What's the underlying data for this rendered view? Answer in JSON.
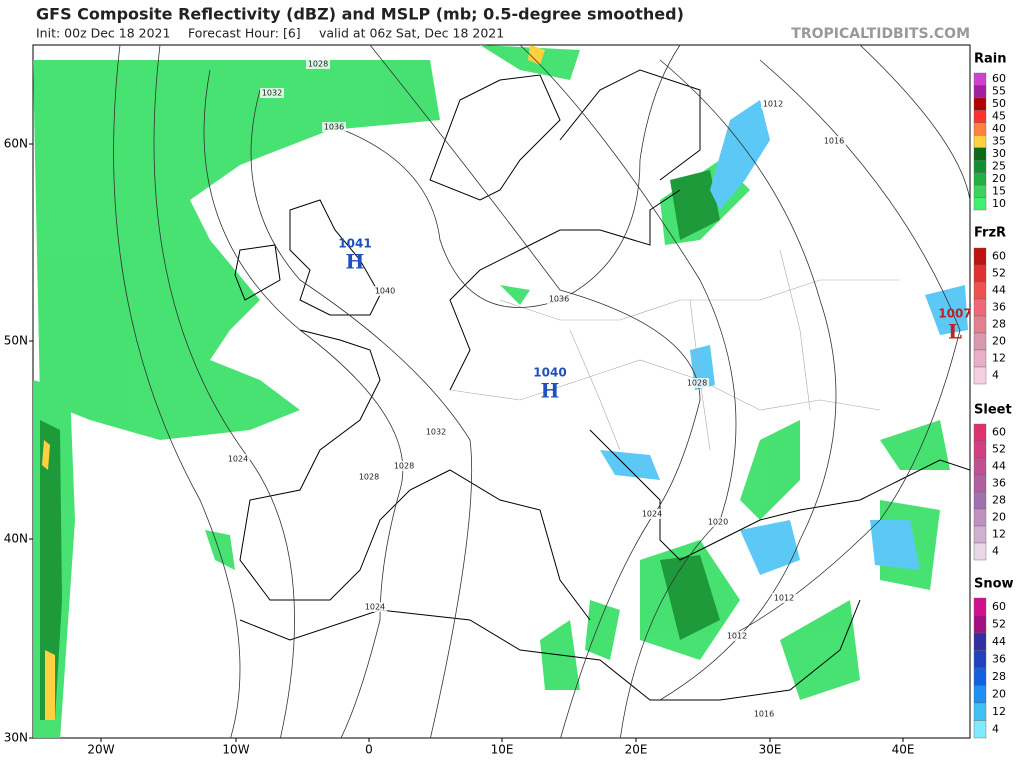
{
  "header": {
    "title": "GFS Composite Reflectivity (dBZ) and MSLP (mb; 0.5-degree smoothed)",
    "init": "Init: 00z Dec 18 2021",
    "forecast_hour": "Forecast Hour: [6]",
    "valid": "valid at 06z Sat, Dec 18 2021",
    "watermark": "TROPICALTIDBITS.COM"
  },
  "map": {
    "lat_labels": [
      "60N",
      "50N",
      "40N",
      "30N"
    ],
    "lon_labels": [
      "20W",
      "10W",
      "0",
      "10E",
      "20E",
      "30E",
      "40E"
    ],
    "pressure_centers": [
      {
        "value": 1041,
        "symbol": "H"
      },
      {
        "value": 1040,
        "symbol": "H"
      },
      {
        "value": 1007,
        "symbol": "L"
      }
    ],
    "isobar_labels": [
      1028,
      1032,
      1036,
      1040,
      1036,
      1032,
      1028,
      1024,
      1028,
      1024,
      1028,
      1024,
      1020,
      1016,
      1012,
      1012,
      1012,
      1016
    ]
  },
  "legends": [
    {
      "title": "Rain",
      "levels": [
        60,
        55,
        50,
        45,
        40,
        35,
        30,
        25,
        20,
        15,
        10
      ],
      "colors": [
        "#d040d0",
        "#a020a0",
        "#b00000",
        "#ff3030",
        "#ff8040",
        "#ffd040",
        "#0a6a1a",
        "#109030",
        "#20b040",
        "#40d060",
        "#40f070"
      ]
    },
    {
      "title": "FrzR",
      "levels": [
        60,
        52,
        44,
        36,
        28,
        20,
        12,
        4
      ],
      "colors": [
        "#c01010",
        "#e03030",
        "#f05050",
        "#f06878",
        "#e08090",
        "#d898b0",
        "#e8b0c8",
        "#f4d0e0"
      ]
    },
    {
      "title": "Sleet",
      "levels": [
        60,
        52,
        44,
        36,
        28,
        20,
        12,
        4
      ],
      "colors": [
        "#e03070",
        "#d04080",
        "#c05090",
        "#b060a0",
        "#a070b0",
        "#c090c0",
        "#d0b0d0",
        "#e8d8e8"
      ]
    },
    {
      "title": "Snow",
      "levels": [
        60,
        52,
        44,
        36,
        28,
        20,
        12,
        4
      ],
      "colors": [
        "#d0108a",
        "#a01080",
        "#3030a0",
        "#2040c0",
        "#1060e0",
        "#2090f0",
        "#40c0f0",
        "#80e8ff"
      ]
    }
  ]
}
